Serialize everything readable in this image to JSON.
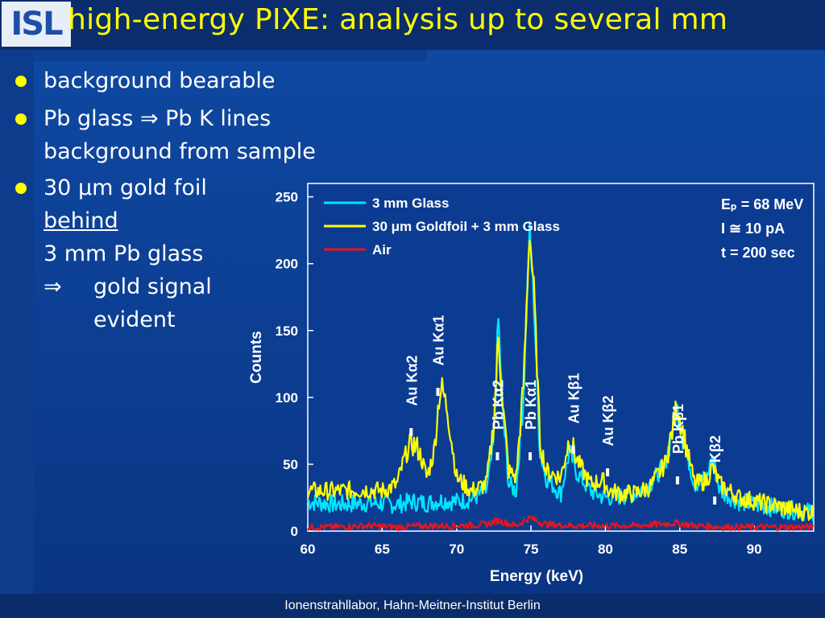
{
  "header": {
    "logo_text": "ISL",
    "title": "high-energy PIXE: analysis up to several mm"
  },
  "bullets": [
    {
      "lines": [
        "background bearable"
      ]
    },
    {
      "lines": [
        "Pb glass ⇒ Pb K lines",
        "background from sample"
      ]
    },
    {
      "line1": "30 μm gold foil",
      "line2": "behind",
      "line3": "3 mm Pb glass",
      "arrow": "⇒",
      "concl1": "gold signal",
      "concl2": "evident"
    }
  ],
  "footer": "Ionenstrahllabor, Hahn-Meitner-Institut Berlin",
  "colors": {
    "cyan": "#00e5ff",
    "yellow": "#ffff00",
    "red": "#e8141c",
    "title": "#ffff00"
  },
  "chart_data": {
    "type": "line",
    "xlabel": "Energy (keV)",
    "ylabel": "Counts",
    "xlim": [
      60,
      94
    ],
    "ylim": [
      0,
      260
    ],
    "xticks": [
      60,
      65,
      70,
      75,
      80,
      85,
      90
    ],
    "yticks": [
      0,
      50,
      100,
      150,
      200,
      250
    ],
    "legend_position": "top-left",
    "series": [
      {
        "name": "3 mm Glass",
        "color": "#00e5ff",
        "points": [
          [
            60,
            22
          ],
          [
            62,
            20
          ],
          [
            64,
            21
          ],
          [
            66,
            20
          ],
          [
            67,
            22
          ],
          [
            68,
            21
          ],
          [
            69,
            23
          ],
          [
            70,
            22
          ],
          [
            71,
            24
          ],
          [
            72,
            30
          ],
          [
            72.5,
            65
          ],
          [
            72.8,
            160
          ],
          [
            73.1,
            90
          ],
          [
            73.5,
            35
          ],
          [
            74,
            30
          ],
          [
            74.5,
            100
          ],
          [
            74.9,
            225
          ],
          [
            75.2,
            170
          ],
          [
            75.6,
            60
          ],
          [
            76,
            40
          ],
          [
            77,
            28
          ],
          [
            77.6,
            60
          ],
          [
            78,
            45
          ],
          [
            79,
            30
          ],
          [
            80,
            25
          ],
          [
            81,
            26
          ],
          [
            82,
            28
          ],
          [
            83,
            35
          ],
          [
            84,
            50
          ],
          [
            84.5,
            75
          ],
          [
            84.8,
            93
          ],
          [
            85.2,
            70
          ],
          [
            86,
            35
          ],
          [
            86.8,
            40
          ],
          [
            87.2,
            55
          ],
          [
            87.7,
            30
          ],
          [
            89,
            22
          ],
          [
            91,
            18
          ],
          [
            93,
            15
          ],
          [
            94,
            14
          ]
        ]
      },
      {
        "name": "30 μm Goldfoil + 3 mm Glass",
        "color": "#ffff00",
        "points": [
          [
            60,
            30
          ],
          [
            62,
            30
          ],
          [
            64,
            31
          ],
          [
            65,
            30
          ],
          [
            66,
            35
          ],
          [
            66.5,
            55
          ],
          [
            67,
            66
          ],
          [
            67.5,
            60
          ],
          [
            68,
            40
          ],
          [
            68.5,
            60
          ],
          [
            68.8,
            98
          ],
          [
            69,
            108
          ],
          [
            69.4,
            90
          ],
          [
            70,
            40
          ],
          [
            71,
            30
          ],
          [
            72,
            35
          ],
          [
            72.5,
            80
          ],
          [
            72.8,
            145
          ],
          [
            73.1,
            95
          ],
          [
            73.5,
            45
          ],
          [
            74,
            40
          ],
          [
            74.5,
            110
          ],
          [
            74.9,
            225
          ],
          [
            75.2,
            180
          ],
          [
            75.6,
            70
          ],
          [
            76,
            45
          ],
          [
            77,
            40
          ],
          [
            77.6,
            70
          ],
          [
            78,
            55
          ],
          [
            79,
            35
          ],
          [
            79.8,
            38
          ],
          [
            80.3,
            30
          ],
          [
            81,
            28
          ],
          [
            82,
            28
          ],
          [
            83,
            33
          ],
          [
            84,
            50
          ],
          [
            84.5,
            75
          ],
          [
            84.8,
            95
          ],
          [
            85.2,
            75
          ],
          [
            86,
            35
          ],
          [
            86.8,
            38
          ],
          [
            87.2,
            48
          ],
          [
            87.7,
            35
          ],
          [
            89,
            25
          ],
          [
            91,
            20
          ],
          [
            93,
            15
          ],
          [
            94,
            14
          ]
        ]
      },
      {
        "name": "Air",
        "color": "#e8141c",
        "points": [
          [
            60,
            3
          ],
          [
            62,
            3
          ],
          [
            64,
            4
          ],
          [
            66,
            3
          ],
          [
            68,
            4
          ],
          [
            70,
            4
          ],
          [
            72,
            5
          ],
          [
            72.8,
            8
          ],
          [
            74,
            4
          ],
          [
            74.9,
            10
          ],
          [
            76,
            5
          ],
          [
            78,
            4
          ],
          [
            80,
            4
          ],
          [
            82,
            4
          ],
          [
            84.8,
            6
          ],
          [
            86,
            4
          ],
          [
            88,
            3
          ],
          [
            90,
            3
          ],
          [
            92,
            3
          ],
          [
            94,
            3
          ]
        ]
      }
    ],
    "annotations": [
      {
        "text": "Au Kα2",
        "x": 67
      },
      {
        "text": "Au Kα1",
        "x": 68.8
      },
      {
        "text": "Pb Kα2",
        "x": 72.8
      },
      {
        "text": "Pb Kα1",
        "x": 75.0
      },
      {
        "text": "Au Kβ1",
        "x": 77.9
      },
      {
        "text": "Au Kβ2",
        "x": 80.2
      },
      {
        "text": "Pb Kβ1",
        "x": 84.9
      },
      {
        "text": "Kβ2",
        "x": 87.4
      }
    ],
    "params": [
      "Eₚ = 68 MeV",
      "I ≅ 10 pA",
      "t = 200 sec"
    ]
  }
}
